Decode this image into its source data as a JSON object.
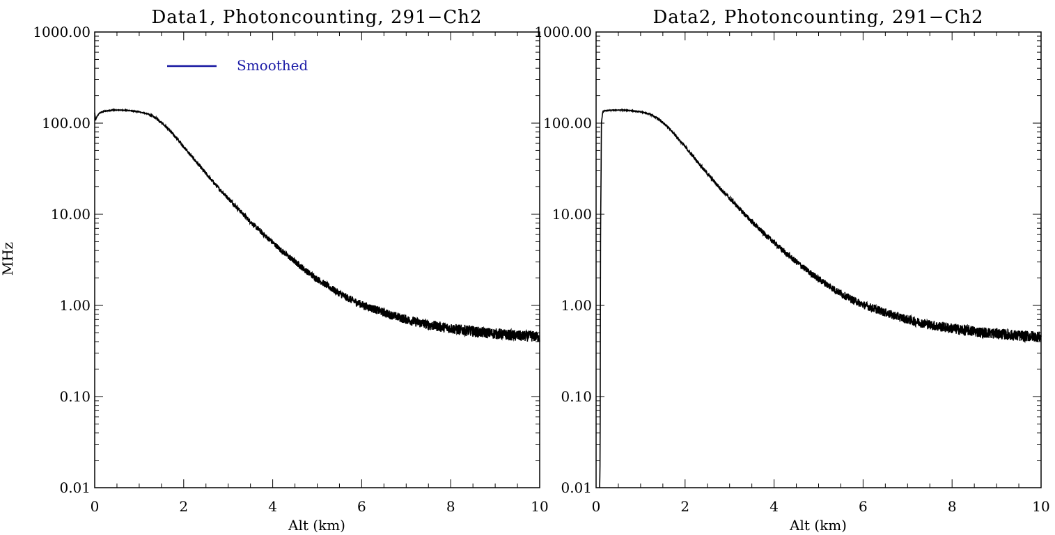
{
  "figure": {
    "ylabel": "MHz",
    "legend": {
      "label": "Smoothed",
      "color": "#1414a0",
      "placement": "top-left"
    }
  },
  "chart_data": [
    {
      "type": "line",
      "title": "Data1, Photoncounting, 291−Ch2",
      "xlabel": "Alt (km)",
      "ylabel": "MHz",
      "xlim": [
        0,
        10
      ],
      "ylim": [
        0.01,
        1000
      ],
      "yscale": "log",
      "grid": false,
      "xticks": [
        "0",
        "2",
        "4",
        "6",
        "8",
        "10"
      ],
      "yticks": [
        "0.01",
        "0.10",
        "1.00",
        "10.00",
        "100.00",
        "1000.00"
      ],
      "series": [
        {
          "name": "Smoothed",
          "color": "#000000",
          "x": [
            0,
            0.02,
            0.05,
            0.1,
            0.2,
            0.4,
            0.6,
            0.8,
            1.0,
            1.2,
            1.4,
            1.6,
            1.8,
            2.0,
            2.2,
            2.4,
            2.6,
            2.8,
            3.0,
            3.2,
            3.4,
            3.6,
            3.8,
            4.0,
            4.2,
            4.4,
            4.6,
            4.8,
            5.0,
            5.2,
            5.4,
            5.6,
            5.8,
            6.0,
            6.2,
            6.4,
            6.6,
            6.8,
            7.0,
            7.2,
            7.4,
            7.6,
            7.8,
            8.0,
            8.2,
            8.4,
            8.6,
            8.8,
            9.0,
            9.2,
            9.4,
            9.6,
            9.8,
            10.0
          ],
          "y": [
            130,
            108,
            118,
            128,
            135,
            139,
            139,
            137,
            133,
            126,
            112,
            92,
            72,
            55,
            42,
            32,
            24.5,
            19,
            15,
            11.8,
            9.3,
            7.4,
            6.0,
            4.9,
            4.0,
            3.3,
            2.75,
            2.3,
            1.95,
            1.68,
            1.45,
            1.27,
            1.13,
            1.02,
            0.94,
            0.87,
            0.8,
            0.75,
            0.7,
            0.66,
            0.63,
            0.6,
            0.58,
            0.56,
            0.54,
            0.53,
            0.51,
            0.5,
            0.49,
            0.48,
            0.47,
            0.46,
            0.46,
            0.45
          ]
        }
      ]
    },
    {
      "type": "line",
      "title": "Data2, Photoncounting, 291−Ch2",
      "xlabel": "Alt (km)",
      "ylabel": "",
      "xlim": [
        0,
        10
      ],
      "ylim": [
        0.01,
        1000
      ],
      "yscale": "log",
      "grid": false,
      "xticks": [
        "0",
        "2",
        "4",
        "6",
        "8",
        "10"
      ],
      "yticks": [
        "0.01",
        "0.10",
        "1.00",
        "10.00",
        "100.00",
        "1000.00"
      ],
      "series": [
        {
          "color": "#000000",
          "x": [
            0.08,
            0.09,
            0.1,
            0.12,
            0.15,
            0.2,
            0.4,
            0.6,
            0.8,
            1.0,
            1.2,
            1.4,
            1.6,
            1.8,
            2.0,
            2.2,
            2.4,
            2.6,
            2.8,
            3.0,
            3.2,
            3.4,
            3.6,
            3.8,
            4.0,
            4.2,
            4.4,
            4.6,
            4.8,
            5.0,
            5.2,
            5.4,
            5.6,
            5.8,
            6.0,
            6.2,
            6.4,
            6.6,
            6.8,
            7.0,
            7.2,
            7.4,
            7.6,
            7.8,
            8.0,
            8.2,
            8.4,
            8.6,
            8.8,
            9.0,
            9.2,
            9.4,
            9.6,
            9.8,
            10.0
          ],
          "y": [
            0.01,
            0.02,
            5,
            100,
            134,
            137,
            139,
            139,
            137,
            133,
            126,
            112,
            92,
            72,
            55,
            42,
            32,
            24.5,
            19,
            15,
            11.8,
            9.3,
            7.4,
            6.0,
            4.9,
            4.0,
            3.3,
            2.75,
            2.3,
            1.95,
            1.68,
            1.45,
            1.27,
            1.13,
            1.02,
            0.94,
            0.87,
            0.8,
            0.75,
            0.7,
            0.66,
            0.63,
            0.6,
            0.58,
            0.56,
            0.54,
            0.53,
            0.51,
            0.5,
            0.49,
            0.48,
            0.47,
            0.46,
            0.46,
            0.45
          ]
        }
      ]
    }
  ]
}
